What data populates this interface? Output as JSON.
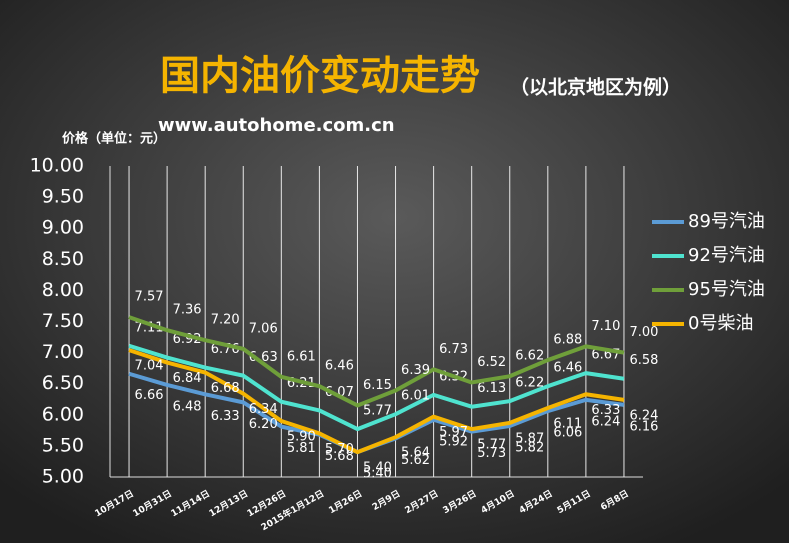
{
  "chart_data": {
    "type": "line",
    "title": "国内油价变动走势",
    "subtitle": "（以北京地区为例）",
    "source": "www.autohome.com.cn",
    "y_label": "价格（单位：元）",
    "categories": [
      "10月17日",
      "10月31日",
      "11月14日",
      "12月13日",
      "12月26日",
      "2015年1月12日",
      "1月26日",
      "2月9日",
      "2月27日",
      "3月26日",
      "4月10日",
      "4月24日",
      "5月11日",
      "6月8日"
    ],
    "ylim": [
      5,
      10
    ],
    "yticks": [
      {
        "value": 5,
        "label": "5.00"
      },
      {
        "value": 5.5,
        "label": "5.50"
      },
      {
        "value": 6,
        "label": "6.00"
      },
      {
        "value": 6.5,
        "label": "6.50"
      },
      {
        "value": 7,
        "label": "7.00"
      },
      {
        "value": 7.5,
        "label": "7.50"
      },
      {
        "value": 8,
        "label": "8.00"
      },
      {
        "value": 8.5,
        "label": "8.50"
      },
      {
        "value": 9,
        "label": "9.00"
      },
      {
        "value": 9.5,
        "label": "9.50"
      },
      {
        "value": 10,
        "label": "10.00"
      }
    ],
    "grid": true,
    "legend": "right",
    "series": [
      {
        "name": "89号汽油",
        "color": "#5b9bd5",
        "values": [
          6.66,
          6.48,
          6.33,
          6.2,
          5.81,
          5.68,
          5.4,
          5.62,
          5.92,
          5.73,
          5.82,
          6.06,
          6.24,
          6.16
        ],
        "value_labels": [
          "6.66",
          "6.48",
          "6.33",
          "6.20",
          "5.81",
          "5.68",
          "5.40",
          "5.62",
          "5.92",
          "5.73",
          "5.82",
          "6.06",
          "6.24",
          "6.16"
        ]
      },
      {
        "name": "92号汽油",
        "color": "#4fe3cf",
        "values": [
          7.11,
          6.92,
          6.76,
          6.63,
          6.21,
          6.07,
          5.77,
          6.01,
          6.32,
          6.13,
          6.22,
          6.46,
          6.67,
          6.58
        ],
        "value_labels": [
          "7.11",
          "6.92",
          "6.76",
          "6.63",
          "6.21",
          "6.07",
          "5.77",
          "6.01",
          "6.32",
          "6.13",
          "6.22",
          "6.46",
          "6.67",
          "6.58"
        ]
      },
      {
        "name": "95号汽油",
        "color": "#6f9f3a",
        "values": [
          7.57,
          7.36,
          7.2,
          7.06,
          6.61,
          6.46,
          6.15,
          6.39,
          6.73,
          6.52,
          6.62,
          6.88,
          7.1,
          7
        ],
        "value_labels": [
          "7.57",
          "7.36",
          "7.20",
          "7.06",
          "6.61",
          "6.46",
          "6.15",
          "6.39",
          "6.73",
          "6.52",
          "6.62",
          "6.88",
          "7.10",
          "7.00"
        ]
      },
      {
        "name": "0号柴油",
        "color": "#f5b400",
        "values": [
          7.04,
          6.84,
          6.68,
          6.34,
          5.9,
          5.7,
          5.4,
          5.64,
          5.97,
          5.77,
          5.87,
          6.11,
          6.33,
          6.24
        ],
        "value_labels": [
          "7.04",
          "6.84",
          "6.68",
          "6.34",
          "5.90",
          "5.70",
          "5.40",
          "5.64",
          "5.97",
          "5.77",
          "5.87",
          "6.11",
          "6.33",
          "6.24"
        ]
      }
    ]
  }
}
